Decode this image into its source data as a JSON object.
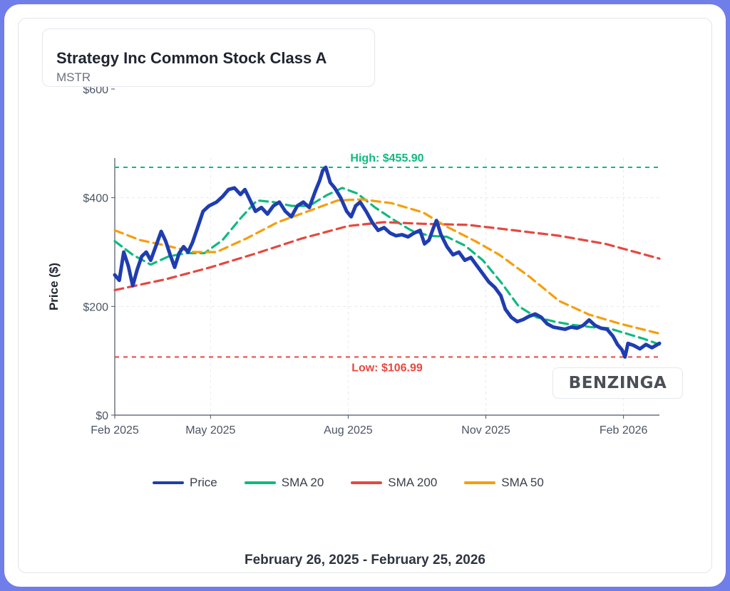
{
  "header": {
    "title": "Strategy Inc Common Stock Class A",
    "ticker": "MSTR"
  },
  "watermark": "BENZINGA",
  "footer": "February 26, 2025 - February 25, 2026",
  "colors": {
    "price": "#1f3db0",
    "sma20": "#10b981",
    "sma200": "#e5483f",
    "sma50": "#f59e0b",
    "high": "#10b981",
    "low": "#e5483f",
    "axis": "#4b5563",
    "grid": "#e8eaee"
  },
  "chart_data": {
    "type": "line",
    "title": "Strategy Inc Common Stock Class A",
    "subtitle": "MSTR",
    "xlabel": "",
    "ylabel": "Price ($)",
    "ylim": [
      0,
      600
    ],
    "y_ticks": [
      0,
      200,
      400,
      600
    ],
    "y_tick_labels": [
      "$0",
      "$200",
      "$400",
      "$600"
    ],
    "x_ticks": [
      "2025-02-26",
      "2025-05-01",
      "2025-08-01",
      "2025-11-01",
      "2026-02-01"
    ],
    "x_tick_labels": [
      "Feb 2025",
      "May 2025",
      "Aug 2025",
      "Nov 2025",
      "Feb 2026"
    ],
    "xlim": [
      "2025-02-26",
      "2026-02-25"
    ],
    "grid": true,
    "legend_position": "bottom",
    "reference_lines": [
      {
        "label": "High: $455.90",
        "value": 455.9
      },
      {
        "label": "Low: $106.99",
        "value": 106.99
      }
    ],
    "series": [
      {
        "name": "Price",
        "style": "solid",
        "points": [
          [
            "2025-02-26",
            258
          ],
          [
            "2025-03-01",
            248
          ],
          [
            "2025-03-04",
            300
          ],
          [
            "2025-03-07",
            275
          ],
          [
            "2025-03-10",
            238
          ],
          [
            "2025-03-13",
            268
          ],
          [
            "2025-03-16",
            292
          ],
          [
            "2025-03-19",
            300
          ],
          [
            "2025-03-22",
            285
          ],
          [
            "2025-03-26",
            315
          ],
          [
            "2025-03-29",
            338
          ],
          [
            "2025-04-01",
            320
          ],
          [
            "2025-04-04",
            295
          ],
          [
            "2025-04-07",
            272
          ],
          [
            "2025-04-10",
            298
          ],
          [
            "2025-04-13",
            310
          ],
          [
            "2025-04-16",
            300
          ],
          [
            "2025-04-19",
            318
          ],
          [
            "2025-04-22",
            342
          ],
          [
            "2025-04-26",
            375
          ],
          [
            "2025-04-30",
            385
          ],
          [
            "2025-05-05",
            392
          ],
          [
            "2025-05-09",
            402
          ],
          [
            "2025-05-13",
            415
          ],
          [
            "2025-05-17",
            418
          ],
          [
            "2025-05-21",
            406
          ],
          [
            "2025-05-24",
            415
          ],
          [
            "2025-05-27",
            398
          ],
          [
            "2025-05-31",
            375
          ],
          [
            "2025-06-04",
            382
          ],
          [
            "2025-06-08",
            370
          ],
          [
            "2025-06-12",
            385
          ],
          [
            "2025-06-16",
            392
          ],
          [
            "2025-06-20",
            375
          ],
          [
            "2025-06-24",
            365
          ],
          [
            "2025-06-28",
            385
          ],
          [
            "2025-07-02",
            392
          ],
          [
            "2025-07-06",
            382
          ],
          [
            "2025-07-10",
            412
          ],
          [
            "2025-07-13",
            432
          ],
          [
            "2025-07-15",
            450
          ],
          [
            "2025-07-17",
            455.9
          ],
          [
            "2025-07-20",
            428
          ],
          [
            "2025-07-23",
            418
          ],
          [
            "2025-07-27",
            400
          ],
          [
            "2025-07-31",
            375
          ],
          [
            "2025-08-03",
            365
          ],
          [
            "2025-08-06",
            385
          ],
          [
            "2025-08-09",
            392
          ],
          [
            "2025-08-13",
            375
          ],
          [
            "2025-08-17",
            355
          ],
          [
            "2025-08-21",
            340
          ],
          [
            "2025-08-25",
            345
          ],
          [
            "2025-08-29",
            335
          ],
          [
            "2025-09-02",
            330
          ],
          [
            "2025-09-06",
            332
          ],
          [
            "2025-09-10",
            328
          ],
          [
            "2025-09-14",
            335
          ],
          [
            "2025-09-18",
            340
          ],
          [
            "2025-09-21",
            315
          ],
          [
            "2025-09-24",
            322
          ],
          [
            "2025-09-27",
            345
          ],
          [
            "2025-09-29",
            358
          ],
          [
            "2025-10-02",
            332
          ],
          [
            "2025-10-06",
            310
          ],
          [
            "2025-10-10",
            295
          ],
          [
            "2025-10-14",
            300
          ],
          [
            "2025-10-18",
            285
          ],
          [
            "2025-10-22",
            290
          ],
          [
            "2025-10-26",
            275
          ],
          [
            "2025-10-30",
            260
          ],
          [
            "2025-11-03",
            245
          ],
          [
            "2025-11-07",
            235
          ],
          [
            "2025-11-11",
            220
          ],
          [
            "2025-11-14",
            195
          ],
          [
            "2025-11-18",
            180
          ],
          [
            "2025-11-22",
            172
          ],
          [
            "2025-11-26",
            176
          ],
          [
            "2025-11-30",
            182
          ],
          [
            "2025-12-04",
            186
          ],
          [
            "2025-12-08",
            180
          ],
          [
            "2025-12-12",
            168
          ],
          [
            "2025-12-16",
            162
          ],
          [
            "2025-12-20",
            160
          ],
          [
            "2025-12-24",
            158
          ],
          [
            "2025-12-28",
            162
          ],
          [
            "2026-01-01",
            160
          ],
          [
            "2026-01-05",
            165
          ],
          [
            "2026-01-09",
            175
          ],
          [
            "2026-01-13",
            165
          ],
          [
            "2026-01-17",
            160
          ],
          [
            "2026-01-21",
            158
          ],
          [
            "2026-01-25",
            145
          ],
          [
            "2026-01-28",
            130
          ],
          [
            "2026-01-31",
            120
          ],
          [
            "2026-02-02",
            107
          ],
          [
            "2026-02-04",
            132
          ],
          [
            "2026-02-08",
            128
          ],
          [
            "2026-02-12",
            122
          ],
          [
            "2026-02-16",
            130
          ],
          [
            "2026-02-20",
            124
          ],
          [
            "2026-02-25",
            132
          ]
        ]
      },
      {
        "name": "SMA 20",
        "style": "dashed",
        "points": [
          [
            "2025-02-26",
            320
          ],
          [
            "2025-03-10",
            295
          ],
          [
            "2025-03-22",
            277
          ],
          [
            "2025-04-03",
            292
          ],
          [
            "2025-04-15",
            298
          ],
          [
            "2025-04-27",
            298
          ],
          [
            "2025-05-09",
            322
          ],
          [
            "2025-05-21",
            362
          ],
          [
            "2025-06-01",
            395
          ],
          [
            "2025-06-12",
            392
          ],
          [
            "2025-06-24",
            385
          ],
          [
            "2025-07-06",
            385
          ],
          [
            "2025-07-18",
            405
          ],
          [
            "2025-07-28",
            418
          ],
          [
            "2025-08-07",
            408
          ],
          [
            "2025-08-19",
            382
          ],
          [
            "2025-08-31",
            360
          ],
          [
            "2025-09-12",
            340
          ],
          [
            "2025-09-24",
            330
          ],
          [
            "2025-10-06",
            328
          ],
          [
            "2025-10-18",
            312
          ],
          [
            "2025-10-30",
            285
          ],
          [
            "2025-11-11",
            245
          ],
          [
            "2025-11-23",
            200
          ],
          [
            "2025-12-05",
            180
          ],
          [
            "2025-12-17",
            172
          ],
          [
            "2025-12-29",
            166
          ],
          [
            "2026-01-10",
            162
          ],
          [
            "2026-01-22",
            160
          ],
          [
            "2026-02-03",
            150
          ],
          [
            "2026-02-15",
            140
          ],
          [
            "2026-02-25",
            130
          ]
        ]
      },
      {
        "name": "SMA 200",
        "style": "dashed",
        "points": [
          [
            "2025-02-26",
            230
          ],
          [
            "2025-04-01",
            250
          ],
          [
            "2025-05-01",
            272
          ],
          [
            "2025-06-01",
            298
          ],
          [
            "2025-07-01",
            325
          ],
          [
            "2025-08-01",
            348
          ],
          [
            "2025-08-25",
            355
          ],
          [
            "2025-09-20",
            352
          ],
          [
            "2025-10-20",
            350
          ],
          [
            "2025-11-20",
            340
          ],
          [
            "2025-12-20",
            330
          ],
          [
            "2026-01-20",
            315
          ],
          [
            "2026-02-25",
            288
          ]
        ]
      },
      {
        "name": "SMA 50",
        "style": "dashed",
        "points": [
          [
            "2025-02-26",
            340
          ],
          [
            "2025-03-15",
            322
          ],
          [
            "2025-04-01",
            312
          ],
          [
            "2025-04-20",
            300
          ],
          [
            "2025-05-05",
            300
          ],
          [
            "2025-05-25",
            325
          ],
          [
            "2025-06-15",
            355
          ],
          [
            "2025-07-05",
            375
          ],
          [
            "2025-07-25",
            395
          ],
          [
            "2025-08-10",
            397
          ],
          [
            "2025-08-30",
            390
          ],
          [
            "2025-09-20",
            373
          ],
          [
            "2025-10-05",
            348
          ],
          [
            "2025-10-25",
            320
          ],
          [
            "2025-11-10",
            295
          ],
          [
            "2025-11-30",
            255
          ],
          [
            "2025-12-20",
            210
          ],
          [
            "2026-01-09",
            185
          ],
          [
            "2026-01-30",
            168
          ],
          [
            "2026-02-25",
            150
          ]
        ]
      }
    ]
  }
}
